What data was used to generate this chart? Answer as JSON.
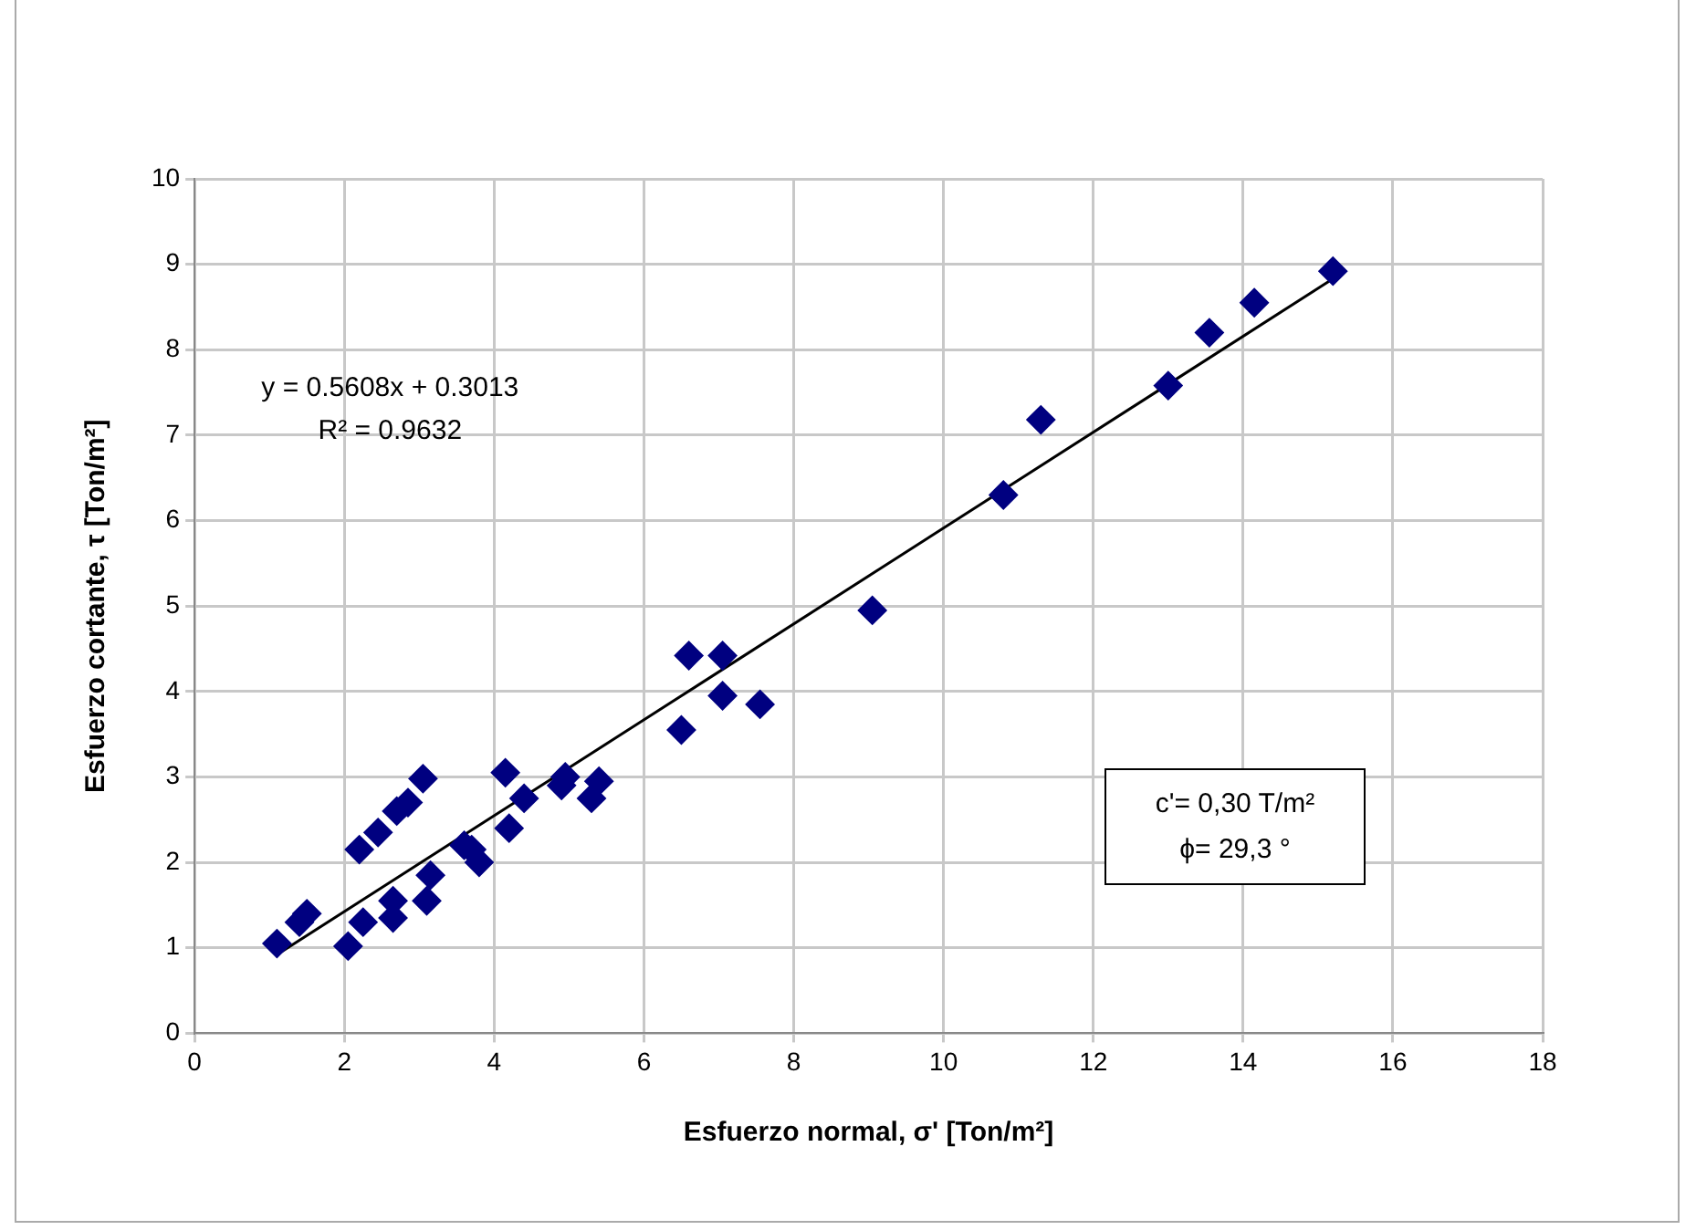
{
  "chart_data": {
    "type": "scatter",
    "xlabel": "Esfuerzo normal, σ' [Ton/m²]",
    "ylabel": "Esfuerzo cortante, τ [Ton/m²]",
    "xlim": [
      0,
      18
    ],
    "xticks": [
      0,
      2,
      4,
      6,
      8,
      10,
      12,
      14,
      16,
      18
    ],
    "ylim": [
      0,
      10
    ],
    "yticks": [
      0,
      1,
      2,
      3,
      4,
      5,
      6,
      7,
      8,
      9,
      10
    ],
    "grid": true,
    "marker": "diamond",
    "series": [
      {
        "color": "#000080",
        "x": [
          1.1,
          1.4,
          1.5,
          2.05,
          2.25,
          2.2,
          2.45,
          2.65,
          2.65,
          2.7,
          2.85,
          3.05,
          3.1,
          3.15,
          3.6,
          3.7,
          3.8,
          4.15,
          4.2,
          4.4,
          4.9,
          4.95,
          5.3,
          5.4,
          6.5,
          6.6,
          7.05,
          7.05,
          7.55,
          9.05,
          10.8,
          11.3,
          13.0,
          13.55,
          14.15,
          15.2
        ],
        "values": [
          1.05,
          1.3,
          1.4,
          1.02,
          1.3,
          2.15,
          2.35,
          1.35,
          1.55,
          2.6,
          2.7,
          2.98,
          1.55,
          1.85,
          2.2,
          2.15,
          2.0,
          3.05,
          2.4,
          2.75,
          2.9,
          3.0,
          2.75,
          2.95,
          3.55,
          4.42,
          4.42,
          3.95,
          3.85,
          4.95,
          6.3,
          7.18,
          7.58,
          8.2,
          8.55,
          8.92
        ]
      },
      {
        "type": "line",
        "color": "#000000",
        "marker": "none",
        "x": [
          1.1,
          15.2
        ],
        "values": [
          0.92,
          8.83
        ]
      }
    ],
    "annotations": [
      "y = 0.5608x + 0.3013",
      "R² = 0.9632",
      "c'= 0,30 T/m²",
      "ϕ= 29,3 °"
    ]
  }
}
